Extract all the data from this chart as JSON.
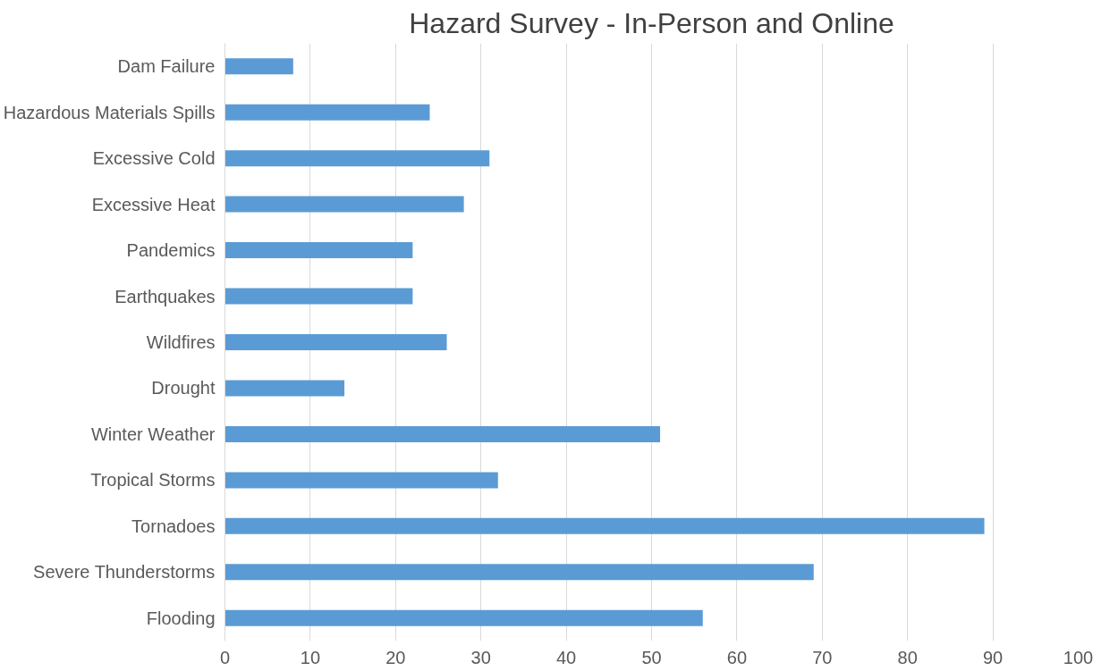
{
  "chart_data": {
    "type": "bar",
    "orientation": "horizontal",
    "title": "Hazard Survey - In-Person and Online",
    "categories": [
      "Dam Failure",
      "Hazardous Materials Spills",
      "Excessive Cold",
      "Excessive Heat",
      "Pandemics",
      "Earthquakes",
      "Wildfires",
      "Drought",
      "Winter Weather",
      "Tropical Storms",
      "Tornadoes",
      "Severe Thunderstorms",
      "Flooding"
    ],
    "values": [
      8,
      24,
      31,
      28,
      22,
      22,
      26,
      14,
      51,
      32,
      89,
      69,
      56
    ],
    "color": "#5b9bd5",
    "xlim": [
      0,
      100
    ],
    "xticks": [
      0,
      10,
      20,
      30,
      40,
      50,
      60,
      70,
      80,
      90,
      100
    ],
    "grid": "x"
  }
}
